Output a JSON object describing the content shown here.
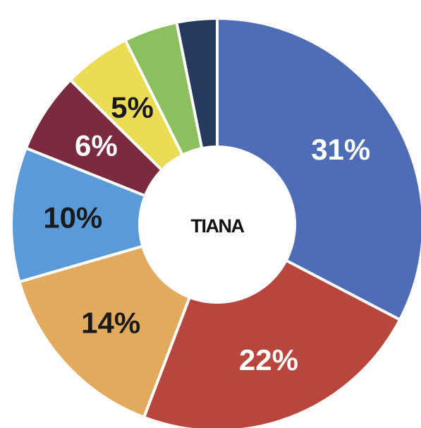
{
  "chart_data": {
    "type": "donut",
    "center_label": "TIANA",
    "values": [
      31,
      22,
      14,
      10,
      6,
      5,
      4,
      3
    ],
    "value_labels": [
      "31%",
      "22%",
      "14%",
      "10%",
      "6%",
      "5%",
      null,
      null
    ],
    "colors": [
      "#4f6cb6",
      "#b9463c",
      "#e2aa5c",
      "#5b9ad8",
      "#7b2a40",
      "#ecdb55",
      "#8cbf5d",
      "#263a5d"
    ],
    "label_colors": [
      "#ffffff",
      "#ffffff",
      "#1a1a1a",
      "#1a1a1a",
      "#ffffff",
      "#1a1a1a",
      null,
      null
    ]
  }
}
